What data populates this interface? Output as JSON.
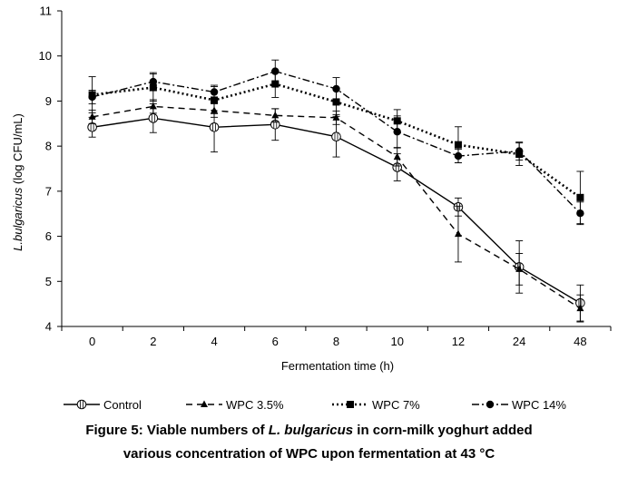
{
  "chart_data": {
    "type": "line",
    "ylabel_italic": "L.bulgaricus",
    "ylabel_rest": " (log CFU/mL)",
    "xlabel": "Fermentation time (h)",
    "categories": [
      "0",
      "2",
      "4",
      "6",
      "8",
      "10",
      "12",
      "24",
      "48"
    ],
    "ylim": [
      4,
      11
    ],
    "yticks": [
      4,
      5,
      6,
      7,
      8,
      9,
      10,
      11
    ],
    "grid": false,
    "legend_position": "bottom",
    "series": [
      {
        "name": "Control",
        "marker": "circle-open",
        "dash": "solid",
        "color": "#000000",
        "values": [
          8.42,
          8.62,
          8.42,
          8.48,
          8.21,
          7.53,
          6.65,
          5.32,
          4.52
        ],
        "errors": [
          0.22,
          0.32,
          0.55,
          0.35,
          0.45,
          0.3,
          0.2,
          0.58,
          0.4
        ]
      },
      {
        "name": "WPC 3.5%",
        "marker": "triangle",
        "dash": "dash",
        "color": "#000000",
        "values": [
          8.65,
          8.88,
          8.79,
          8.68,
          8.63,
          7.76,
          6.05,
          5.27,
          4.4
        ],
        "errors": [
          0.15,
          0.15,
          0.15,
          0.15,
          0.15,
          0.2,
          0.62,
          0.35,
          0.3
        ]
      },
      {
        "name": "WPC 7%",
        "marker": "square",
        "dash": "dot",
        "color": "#000000",
        "values": [
          9.14,
          9.3,
          9.02,
          9.38,
          8.98,
          8.56,
          8.03,
          7.82,
          6.86
        ],
        "errors": [
          0.4,
          0.3,
          0.3,
          0.3,
          0.28,
          0.25,
          0.4,
          0.25,
          0.58
        ]
      },
      {
        "name": "WPC 14%",
        "marker": "circle",
        "dash": "dashdot",
        "color": "#000000",
        "values": [
          9.09,
          9.43,
          9.2,
          9.66,
          9.27,
          8.32,
          7.78,
          7.89,
          6.51
        ],
        "errors": [
          0.15,
          0.2,
          0.15,
          0.25,
          0.25,
          0.35,
          0.15,
          0.2,
          0.25
        ]
      }
    ]
  },
  "caption": {
    "line1_a": "Figure 5: Viable numbers of ",
    "line1_italic": "L. bulgaricus",
    "line1_b": " in corn-milk yoghurt added",
    "line2": "various concentration of WPC upon fermentation at 43 °C"
  }
}
